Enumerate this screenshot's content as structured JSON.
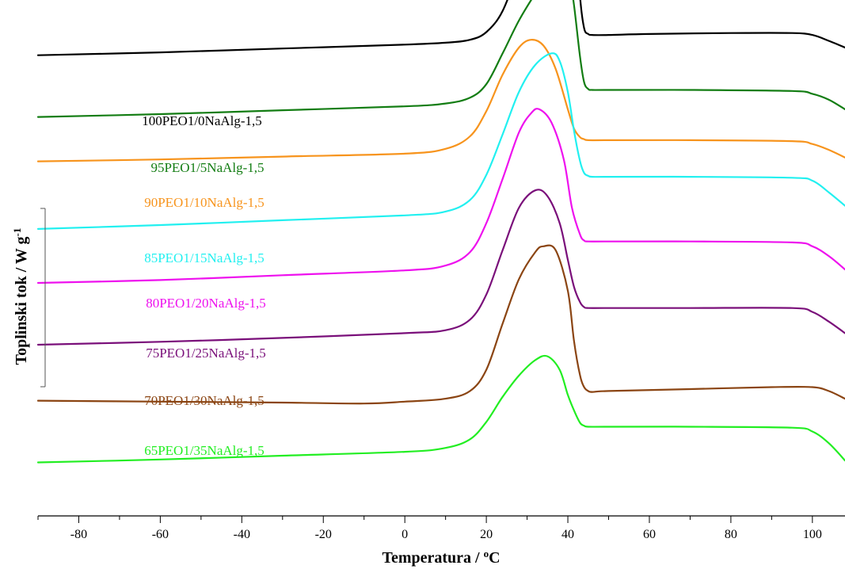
{
  "chart_data": {
    "type": "line",
    "xlabel": "Temperatura / ",
    "xlabel_sup": "o",
    "xlabel_unit": "C",
    "ylabel": "Toplinski tok / W g",
    "ylabel_sup": "-1",
    "xlim": [
      -90,
      108
    ],
    "xticks": [
      -80,
      -60,
      -40,
      -20,
      0,
      20,
      40,
      60,
      80,
      100
    ],
    "grid": false,
    "legend": "labels placed above each curve",
    "series": [
      {
        "name": "100PEO1/0NaAlg-1,5",
        "color": "#000000",
        "x": [
          -90,
          -60,
          -30,
          0,
          10,
          16,
          20,
          24,
          28,
          32,
          35,
          38,
          40,
          41.5,
          43,
          44,
          45,
          46,
          50,
          60,
          80,
          95,
          100,
          104,
          108
        ],
        "y": [
          6.8,
          6.95,
          7.15,
          7.35,
          7.45,
          7.6,
          8.0,
          9.1,
          11.4,
          14.2,
          16.3,
          17.4,
          16.8,
          14.2,
          9.8,
          8.2,
          7.9,
          7.85,
          7.85,
          7.9,
          7.95,
          7.95,
          7.85,
          7.55,
          7.2
        ]
      },
      {
        "name": "95PEO1/5NaAlg-1,5",
        "color": "#137d13",
        "x": [
          -90,
          -60,
          -30,
          0,
          10,
          16,
          20,
          24,
          28,
          32,
          36,
          38,
          40,
          41.5,
          43,
          44,
          45,
          46,
          50,
          70,
          95,
          100,
          104,
          108
        ],
        "y": [
          3.6,
          3.75,
          3.95,
          4.15,
          4.3,
          4.6,
          5.3,
          6.9,
          8.6,
          10.0,
          11.3,
          11.8,
          11.4,
          9.4,
          6.7,
          5.4,
          5.05,
          5.0,
          5.0,
          5.0,
          4.95,
          4.8,
          4.5,
          4.0
        ]
      },
      {
        "name": "90PEO1/10NaAlg-1,5",
        "color": "#f7941d",
        "x": [
          -90,
          -60,
          -30,
          0,
          10,
          16,
          20,
          24,
          28,
          31,
          34,
          37,
          40,
          41.5,
          43,
          44,
          45,
          50,
          70,
          95,
          100,
          104,
          108
        ],
        "y": [
          1.3,
          1.4,
          1.55,
          1.7,
          1.95,
          2.6,
          3.9,
          5.8,
          7.2,
          7.6,
          7.3,
          6.1,
          4.0,
          3.0,
          2.55,
          2.45,
          2.4,
          2.4,
          2.4,
          2.35,
          2.2,
          1.9,
          1.5
        ]
      },
      {
        "name": "85PEO1/15NaAlg-1,5",
        "color": "#22f0f0",
        "x": [
          -90,
          -60,
          -30,
          0,
          10,
          16,
          20,
          24,
          28,
          32,
          36,
          38,
          40,
          41.5,
          43,
          44,
          45,
          46,
          50,
          70,
          95,
          100,
          104,
          108
        ],
        "y": [
          -2.2,
          -2.0,
          -1.75,
          -1.5,
          -1.3,
          -0.7,
          0.6,
          2.7,
          4.9,
          6.3,
          6.9,
          6.5,
          4.9,
          2.9,
          1.3,
          0.7,
          0.55,
          0.5,
          0.5,
          0.5,
          0.45,
          0.3,
          -0.3,
          -1.0
        ]
      },
      {
        "name": "80PEO1/20NaAlg-1,5",
        "color": "#ee11ee",
        "x": [
          -90,
          -60,
          -30,
          0,
          10,
          16,
          20,
          24,
          28,
          31,
          33,
          36,
          39,
          41,
          43,
          44,
          45,
          50,
          70,
          95,
          100,
          104,
          108
        ],
        "y": [
          -5.0,
          -4.85,
          -4.6,
          -4.35,
          -4.1,
          -3.4,
          -1.9,
          0.4,
          2.8,
          3.8,
          4.0,
          3.3,
          1.4,
          -1.1,
          -2.5,
          -2.8,
          -2.85,
          -2.85,
          -2.85,
          -2.9,
          -3.1,
          -3.6,
          -4.3
        ]
      },
      {
        "name": "75PEO1/25NaAlg-1,5",
        "color": "#7a0f7a",
        "x": [
          -90,
          -60,
          -30,
          0,
          10,
          16,
          20,
          24,
          28,
          32,
          35,
          38,
          40,
          41.5,
          43,
          44,
          45,
          50,
          70,
          95,
          100,
          104,
          108
        ],
        "y": [
          -8.2,
          -8.05,
          -7.85,
          -7.6,
          -7.45,
          -6.9,
          -5.6,
          -3.3,
          -1.1,
          -0.2,
          -0.5,
          -1.9,
          -3.8,
          -5.2,
          -6.0,
          -6.25,
          -6.3,
          -6.3,
          -6.3,
          -6.3,
          -6.5,
          -7.0,
          -7.6
        ]
      },
      {
        "name": "70PEO1/30NaAlg-1,5",
        "color": "#8b4513",
        "x": [
          -90,
          -60,
          -30,
          -10,
          0,
          10,
          16,
          20,
          24,
          28,
          32,
          34,
          37,
          40,
          41.5,
          43,
          44,
          45,
          46,
          50,
          70,
          90,
          100,
          104,
          108
        ],
        "y": [
          -11.1,
          -11.15,
          -11.2,
          -11.25,
          -11.15,
          -11.0,
          -10.6,
          -9.5,
          -7.1,
          -4.8,
          -3.4,
          -3.1,
          -3.3,
          -5.4,
          -8.0,
          -9.8,
          -10.4,
          -10.6,
          -10.65,
          -10.6,
          -10.5,
          -10.4,
          -10.4,
          -10.6,
          -11.0
        ]
      },
      {
        "name": "65PEO1/35NaAlg-1,5",
        "color": "#22ee22",
        "x": [
          -90,
          -60,
          -30,
          0,
          10,
          16,
          20,
          24,
          28,
          32,
          35,
          38,
          40,
          41.5,
          43,
          44,
          45,
          50,
          70,
          95,
          100,
          104,
          108
        ],
        "y": [
          -14.3,
          -14.15,
          -13.95,
          -13.75,
          -13.55,
          -13.1,
          -12.2,
          -10.9,
          -9.8,
          -9.0,
          -8.8,
          -9.5,
          -10.8,
          -11.6,
          -12.25,
          -12.4,
          -12.45,
          -12.45,
          -12.45,
          -12.5,
          -12.7,
          -13.3,
          -14.2
        ]
      }
    ]
  }
}
